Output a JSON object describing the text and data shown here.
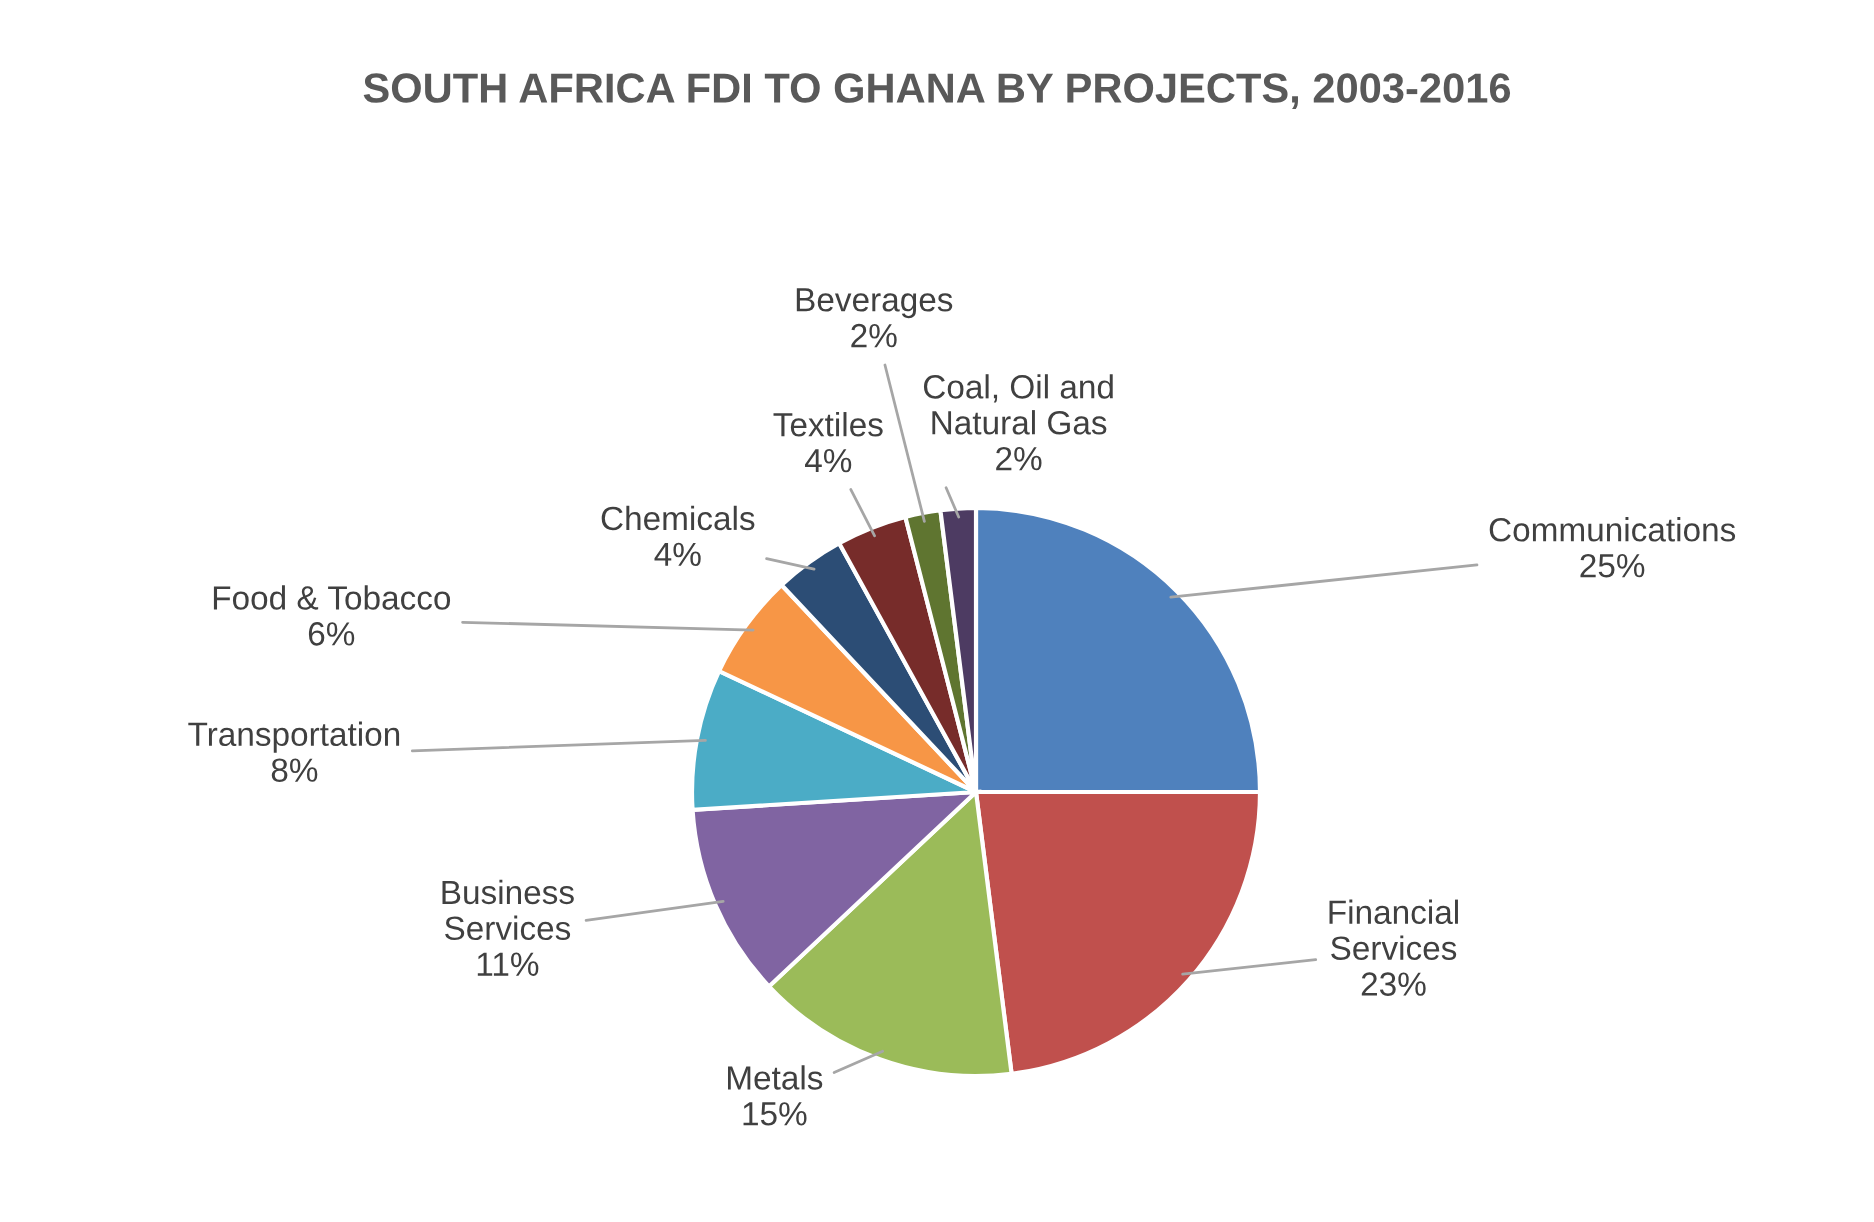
{
  "chart_data": {
    "type": "pie",
    "title": "SOUTH AFRICA FDI TO GHANA BY PROJECTS, 2003-2016",
    "categories": [
      "Communications",
      "Financial Services",
      "Metals",
      "Business Services",
      "Transportation",
      "Food & Tobacco",
      "Chemicals",
      "Textiles",
      "Beverages",
      "Coal, Oil and Natural Gas"
    ],
    "values": [
      25,
      23,
      15,
      11,
      8,
      6,
      4,
      4,
      2,
      2
    ],
    "colors": [
      "#4f81bd",
      "#c0504d",
      "#9bbb59",
      "#8064a2",
      "#4bacc6",
      "#f79646",
      "#2c4d75",
      "#772c2a",
      "#5f7530",
      "#4d3b62"
    ],
    "value_labels": [
      "25%",
      "23%",
      "15%",
      "11%",
      "8%",
      "6%",
      "4%",
      "4%",
      "2%",
      "2%"
    ],
    "legend": false
  }
}
